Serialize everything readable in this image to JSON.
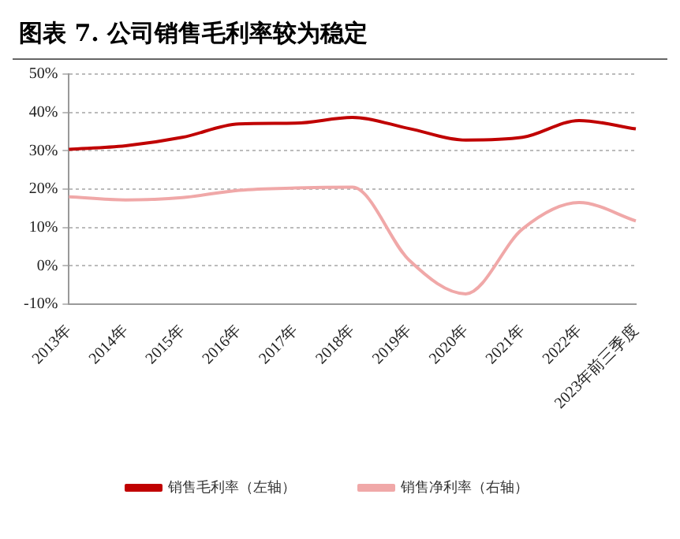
{
  "chart_data": {
    "type": "line",
    "title": "图表 7. 公司销售毛利率较为稳定",
    "categories": [
      "2013年",
      "2014年",
      "2015年",
      "2016年",
      "2017年",
      "2018年",
      "2019年",
      "2020年",
      "2021年",
      "2022年",
      "2023年前三季度"
    ],
    "series": [
      {
        "name": "销售毛利率（左轴）",
        "color": "#c00000",
        "values": [
          30.4,
          31.3,
          33.5,
          37.0,
          37.2,
          38.7,
          35.8,
          32.8,
          33.5,
          37.9,
          35.7
        ]
      },
      {
        "name": "销售净利率（右轴）",
        "color": "#f0a8a8",
        "values": [
          18.0,
          17.2,
          17.8,
          19.7,
          20.3,
          20.5,
          1.5,
          -7.3,
          9.6,
          16.5,
          11.7
        ]
      }
    ],
    "ylim": [
      -10,
      50
    ],
    "yticks": [
      {
        "value": -10,
        "label": "-10%"
      },
      {
        "value": 0,
        "label": "0%"
      },
      {
        "value": 10,
        "label": "10%"
      },
      {
        "value": 20,
        "label": "20%"
      },
      {
        "value": 30,
        "label": "30%"
      },
      {
        "value": 40,
        "label": "40%"
      },
      {
        "value": 50,
        "label": "50%"
      }
    ],
    "grid": "y",
    "legend": "bottom",
    "marker": "none",
    "line_style": "solid"
  }
}
